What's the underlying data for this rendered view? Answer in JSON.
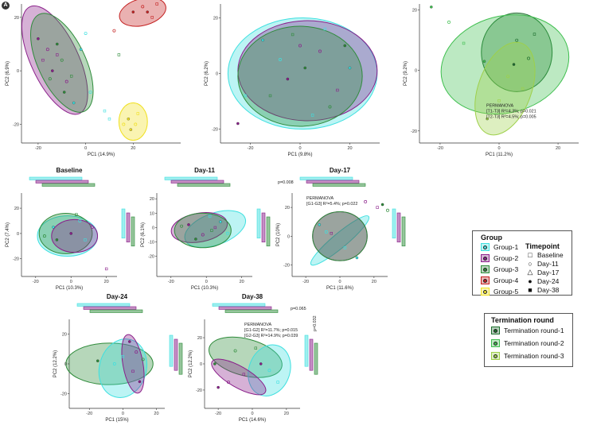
{
  "figure_label": "A",
  "colors": {
    "Group-1": "#3ee0e0",
    "Group-2": "#8a1f8a",
    "Group-3": "#2e8b3a",
    "Group-4": "#c42020",
    "Group-5": "#f0e020",
    "Termination round-1": "#1f6f2f",
    "Termination round-2": "#3fbf4f",
    "Termination round-3": "#9ed04a"
  },
  "legend": {
    "group_title": "Group",
    "groups": [
      "Group-1",
      "Group-2",
      "Group-3",
      "Group-4",
      "Group-5"
    ],
    "timepoint_title": "Timepoint",
    "timepoints": [
      {
        "label": "Baseline",
        "symbol": "□"
      },
      {
        "label": "Day-11",
        "symbol": "○"
      },
      {
        "label": "Day-17",
        "symbol": "△"
      },
      {
        "label": "Day-24",
        "symbol": "●"
      },
      {
        "label": "Day-38",
        "symbol": "■"
      }
    ],
    "termination_title": "Termination round",
    "termination_rounds": [
      "Termination round-1",
      "Termination round-2",
      "Termination round-3"
    ]
  },
  "chart_data": [
    {
      "id": "all-groups",
      "type": "scatter",
      "title": "",
      "xlabel": "PC1 (14.9%)",
      "ylabel": "PC2 (6.9%)",
      "xlim": [
        -27,
        40
      ],
      "ylim": [
        -27,
        25
      ],
      "xticks": [
        -20,
        0,
        20
      ],
      "yticks": [
        -20,
        0,
        20
      ],
      "grid": false,
      "ellipses": [
        {
          "group": "Group-2",
          "cx": -13,
          "cy": 4,
          "rx": 10,
          "ry": 22,
          "angle": -25
        },
        {
          "group": "Group-3",
          "cx": -10,
          "cy": 3,
          "rx": 10,
          "ry": 20,
          "angle": -25
        },
        {
          "group": "Group-4",
          "cx": 24,
          "cy": 22,
          "rx": 10,
          "ry": 5,
          "angle": -15
        },
        {
          "group": "Group-5",
          "cx": 20,
          "cy": -19,
          "rx": 6,
          "ry": 7,
          "angle": 0
        }
      ],
      "points": [
        {
          "group": "Group-2",
          "x": -20,
          "y": 12
        },
        {
          "group": "Group-2",
          "x": -16,
          "y": 8
        },
        {
          "group": "Group-2",
          "x": -12,
          "y": 6
        },
        {
          "group": "Group-2",
          "x": -14,
          "y": 0
        },
        {
          "group": "Group-2",
          "x": -8,
          "y": -4
        },
        {
          "group": "Group-2",
          "x": -18,
          "y": 4
        },
        {
          "group": "Group-3",
          "x": -12,
          "y": 10
        },
        {
          "group": "Group-3",
          "x": -10,
          "y": 4
        },
        {
          "group": "Group-3",
          "x": -6,
          "y": -2
        },
        {
          "group": "Group-3",
          "x": -9,
          "y": -8
        },
        {
          "group": "Group-3",
          "x": -15,
          "y": -3
        },
        {
          "group": "Group-3",
          "x": 14,
          "y": 6
        },
        {
          "group": "Group-1",
          "x": -5,
          "y": -12
        },
        {
          "group": "Group-1",
          "x": 2,
          "y": -8
        },
        {
          "group": "Group-1",
          "x": 8,
          "y": -15
        },
        {
          "group": "Group-1",
          "x": -2,
          "y": 8
        },
        {
          "group": "Group-1",
          "x": 0,
          "y": 14
        },
        {
          "group": "Group-1",
          "x": 10,
          "y": -18
        },
        {
          "group": "Group-4",
          "x": 20,
          "y": 22
        },
        {
          "group": "Group-4",
          "x": 24,
          "y": 24
        },
        {
          "group": "Group-4",
          "x": 28,
          "y": 20
        },
        {
          "group": "Group-4",
          "x": 26,
          "y": 22
        },
        {
          "group": "Group-4",
          "x": 12,
          "y": 15
        },
        {
          "group": "Group-4",
          "x": 30,
          "y": 25
        },
        {
          "group": "Group-5",
          "x": 18,
          "y": -18
        },
        {
          "group": "Group-5",
          "x": 21,
          "y": -20
        },
        {
          "group": "Group-5",
          "x": 22,
          "y": -16
        },
        {
          "group": "Group-5",
          "x": 19,
          "y": -22
        },
        {
          "group": "Group-5",
          "x": 16,
          "y": -20
        }
      ]
    },
    {
      "id": "all-timepoints",
      "type": "scatter",
      "title": "",
      "xlabel": "PC1 (9.8%)",
      "ylabel": "PC2 (6.2%)",
      "xlim": [
        -32,
        32
      ],
      "ylim": [
        -25,
        25
      ],
      "xticks": [
        -20,
        0,
        20
      ],
      "yticks": [
        -20,
        0,
        20
      ],
      "grid": false,
      "ellipses": [
        {
          "group": "Group-1",
          "cx": 1,
          "cy": 0,
          "rx": 30,
          "ry": 20,
          "angle": 0
        },
        {
          "group": "Group-2",
          "cx": 3,
          "cy": 1,
          "rx": 28,
          "ry": 18,
          "angle": 0
        },
        {
          "group": "Group-3",
          "cx": 0,
          "cy": -1,
          "rx": 25,
          "ry": 18,
          "angle": 0
        }
      ],
      "points": [
        {
          "group": "Group-1",
          "x": -15,
          "y": 12
        },
        {
          "group": "Group-1",
          "x": -8,
          "y": 5
        },
        {
          "group": "Group-1",
          "x": 10,
          "y": 16
        },
        {
          "group": "Group-1",
          "x": 20,
          "y": 2
        },
        {
          "group": "Group-1",
          "x": -22,
          "y": -8
        },
        {
          "group": "Group-1",
          "x": 5,
          "y": -15
        },
        {
          "group": "Group-2",
          "x": -5,
          "y": -2
        },
        {
          "group": "Group-2",
          "x": 8,
          "y": 8
        },
        {
          "group": "Group-2",
          "x": 15,
          "y": -6
        },
        {
          "group": "Group-2",
          "x": -25,
          "y": -18
        },
        {
          "group": "Group-2",
          "x": 0,
          "y": 10
        },
        {
          "group": "Group-3",
          "x": -12,
          "y": -8
        },
        {
          "group": "Group-3",
          "x": 2,
          "y": 2
        },
        {
          "group": "Group-3",
          "x": 12,
          "y": -12
        },
        {
          "group": "Group-3",
          "x": -3,
          "y": 14
        },
        {
          "group": "Group-3",
          "x": 18,
          "y": 10
        }
      ]
    },
    {
      "id": "termination",
      "type": "scatter",
      "title": "",
      "xlabel": "PC1 (11.2%)",
      "ylabel": "PC2 (9.2%)",
      "xlim": [
        -27,
        27
      ],
      "ylim": [
        -24,
        22
      ],
      "xticks": [
        -20,
        0,
        20
      ],
      "yticks": [
        -20,
        0,
        20
      ],
      "grid": false,
      "ellipses": [
        {
          "group": "Termination round-1",
          "cx": 6,
          "cy": 6,
          "rx": 12,
          "ry": 13,
          "angle": 0
        },
        {
          "group": "Termination round-2",
          "cx": 2,
          "cy": 2,
          "rx": 22,
          "ry": 16,
          "angle": -15
        },
        {
          "group": "Termination round-3",
          "cx": 2,
          "cy": -6,
          "rx": 9,
          "ry": 16,
          "angle": 20
        }
      ],
      "points": [
        {
          "group": "Termination round-2",
          "x": -23,
          "y": 21
        },
        {
          "group": "Termination round-2",
          "x": -17,
          "y": 16
        },
        {
          "group": "Termination round-2",
          "x": -12,
          "y": 9
        },
        {
          "group": "Termination round-2",
          "x": -5,
          "y": 3
        },
        {
          "group": "Termination round-1",
          "x": 6,
          "y": 10
        },
        {
          "group": "Termination round-1",
          "x": 12,
          "y": 12
        },
        {
          "group": "Termination round-1",
          "x": 5,
          "y": 2
        },
        {
          "group": "Termination round-1",
          "x": 10,
          "y": 4
        },
        {
          "group": "Termination round-3",
          "x": 0,
          "y": -10
        },
        {
          "group": "Termination round-3",
          "x": -4,
          "y": -16
        },
        {
          "group": "Termination round-3",
          "x": 3,
          "y": -2
        },
        {
          "group": "Termination round-3",
          "x": 8,
          "y": -6
        }
      ],
      "annotation": [
        "PERMANOVA",
        "[T1-T3] R²=4.3%; p=0.021",
        "[T2-T3] R²=4.5%; p=0.005"
      ]
    },
    {
      "id": "baseline",
      "type": "scatter",
      "title": "Baseline",
      "xlabel": "PC1 (10.3%)",
      "ylabel": "PC2 (7.4%)",
      "xlim": [
        -28,
        26
      ],
      "ylim": [
        -34,
        32
      ],
      "xticks": [
        -20,
        0,
        20
      ],
      "yticks": [
        -20,
        0,
        20
      ],
      "grid": false,
      "ellipses": [
        {
          "group": "Group-1",
          "cx": -2,
          "cy": -2,
          "rx": 17,
          "ry": 16,
          "angle": 0
        },
        {
          "group": "Group-3",
          "cx": -3,
          "cy": 0,
          "rx": 15,
          "ry": 16,
          "angle": 0
        },
        {
          "group": "Group-2",
          "cx": 2,
          "cy": -2,
          "rx": 13,
          "ry": 13,
          "angle": 0
        }
      ],
      "points": [
        {
          "group": "Group-1",
          "x": -10,
          "y": 5
        },
        {
          "group": "Group-1",
          "x": 5,
          "y": 10
        },
        {
          "group": "Group-1",
          "x": 8,
          "y": -5
        },
        {
          "group": "Group-2",
          "x": 0,
          "y": 0
        },
        {
          "group": "Group-2",
          "x": 12,
          "y": 5
        },
        {
          "group": "Group-2",
          "x": 20,
          "y": -28
        },
        {
          "group": "Group-3",
          "x": -8,
          "y": -5
        },
        {
          "group": "Group-3",
          "x": -15,
          "y": -2
        },
        {
          "group": "Group-3",
          "x": 3,
          "y": 15
        }
      ]
    },
    {
      "id": "day11",
      "type": "scatter",
      "title": "Day-11",
      "xlabel": "PC1 (10.3%)",
      "ylabel": "PC2 (6.1%)",
      "xlim": [
        -28,
        26
      ],
      "ylim": [
        -34,
        24
      ],
      "xticks": [
        -20,
        0,
        20
      ],
      "yticks": [
        -20,
        -10,
        0,
        10,
        20
      ],
      "grid": false,
      "ellipses": [
        {
          "group": "Group-1",
          "cx": 5,
          "cy": -1,
          "rx": 18,
          "ry": 11,
          "angle": -20
        },
        {
          "group": "Group-2",
          "cx": -4,
          "cy": 0,
          "rx": 16,
          "ry": 10,
          "angle": -10
        },
        {
          "group": "Group-3",
          "cx": -2,
          "cy": -2,
          "rx": 16,
          "ry": 12,
          "angle": 0
        }
      ],
      "points": [
        {
          "group": "Group-1",
          "x": 8,
          "y": 4
        },
        {
          "group": "Group-1",
          "x": 12,
          "y": -4
        },
        {
          "group": "Group-1",
          "x": 2,
          "y": 8
        },
        {
          "group": "Group-2",
          "x": -10,
          "y": 2
        },
        {
          "group": "Group-2",
          "x": -2,
          "y": -5
        },
        {
          "group": "Group-2",
          "x": 5,
          "y": 0
        },
        {
          "group": "Group-3",
          "x": -6,
          "y": -8
        },
        {
          "group": "Group-3",
          "x": -14,
          "y": 1
        },
        {
          "group": "Group-3",
          "x": 3,
          "y": -2
        }
      ]
    },
    {
      "id": "day17",
      "type": "scatter",
      "title": "Day-17",
      "xlabel": "PC1 (11.6%)",
      "ylabel": "PC2 (10%)",
      "xlim": [
        -28,
        28
      ],
      "ylim": [
        -28,
        30
      ],
      "xticks": [
        -20,
        0,
        20
      ],
      "yticks": [
        -20,
        0,
        20
      ],
      "grid": false,
      "ellipses": [
        {
          "group": "Group-1",
          "cx": 0,
          "cy": -3,
          "rx": 22,
          "ry": 5,
          "angle": -40
        },
        {
          "group": "Group-2",
          "cx": 0,
          "cy": 0,
          "rx": 16,
          "ry": 17,
          "angle": 0
        },
        {
          "group": "Group-3",
          "cx": 0,
          "cy": 0,
          "rx": 16,
          "ry": 17,
          "angle": 0
        }
      ],
      "points": [
        {
          "group": "Group-1",
          "x": -12,
          "y": 8
        },
        {
          "group": "Group-1",
          "x": -8,
          "y": 3
        },
        {
          "group": "Group-1",
          "x": 3,
          "y": -8
        },
        {
          "group": "Group-1",
          "x": 10,
          "y": -15
        },
        {
          "group": "Group-2",
          "x": 15,
          "y": 24
        },
        {
          "group": "Group-2",
          "x": 22,
          "y": 20
        },
        {
          "group": "Group-3",
          "x": 25,
          "y": 22
        },
        {
          "group": "Group-3",
          "x": 28,
          "y": 18
        },
        {
          "group": "Group-2",
          "x": -5,
          "y": 2
        }
      ],
      "annotation": [
        "PERMANOVA",
        "[G1-G3] R²=5.4%; p=0.022"
      ],
      "pvalue_bracket": "p=0.008"
    },
    {
      "id": "day24",
      "type": "scatter",
      "title": "Day-24",
      "xlabel": "PC1 (15%)",
      "ylabel": "PC2 (12.2%)",
      "xlim": [
        -32,
        25
      ],
      "ylim": [
        -30,
        30
      ],
      "xticks": [
        -20,
        0,
        20
      ],
      "yticks": [
        -20,
        0,
        20
      ],
      "grid": false,
      "ellipses": [
        {
          "group": "Group-3",
          "cx": -8,
          "cy": 0,
          "rx": 26,
          "ry": 14,
          "angle": 0
        },
        {
          "group": "Group-1",
          "cx": 0,
          "cy": -3,
          "rx": 14,
          "ry": 20,
          "angle": 15
        },
        {
          "group": "Group-2",
          "cx": 6,
          "cy": 0,
          "rx": 6,
          "ry": 20,
          "angle": -10
        }
      ],
      "points": [
        {
          "group": "Group-3",
          "x": -15,
          "y": 2
        },
        {
          "group": "Group-1",
          "x": -5,
          "y": 0
        },
        {
          "group": "Group-1",
          "x": 0,
          "y": 5
        },
        {
          "group": "Group-2",
          "x": 4,
          "y": 15
        },
        {
          "group": "Group-2",
          "x": 8,
          "y": 8
        },
        {
          "group": "Group-2",
          "x": 6,
          "y": -5
        },
        {
          "group": "Group-2",
          "x": 10,
          "y": -12
        },
        {
          "group": "Group-3",
          "x": 12,
          "y": 3
        }
      ]
    },
    {
      "id": "day38",
      "type": "scatter",
      "title": "Day-38",
      "xlabel": "PC1 (14.6%)",
      "ylabel": "PC2 (12.2%)",
      "xlim": [
        -28,
        28
      ],
      "ylim": [
        -34,
        34
      ],
      "xticks": [
        -20,
        0,
        20
      ],
      "yticks": [
        -20,
        0,
        20
      ],
      "grid": false,
      "ellipses": [
        {
          "group": "Group-3",
          "cx": -4,
          "cy": 5,
          "rx": 22,
          "ry": 14,
          "angle": 15
        },
        {
          "group": "Group-1",
          "cx": 10,
          "cy": -5,
          "rx": 12,
          "ry": 20,
          "angle": 20
        },
        {
          "group": "Group-2",
          "cx": -8,
          "cy": -10,
          "rx": 18,
          "ry": 8,
          "angle": 30
        }
      ],
      "points": [
        {
          "group": "Group-2",
          "x": -20,
          "y": -18
        },
        {
          "group": "Group-2",
          "x": -14,
          "y": -14
        },
        {
          "group": "Group-2",
          "x": -5,
          "y": -8
        },
        {
          "group": "Group-2",
          "x": 5,
          "y": 0
        },
        {
          "group": "Group-3",
          "x": -10,
          "y": 10
        },
        {
          "group": "Group-3",
          "x": 2,
          "y": 12
        },
        {
          "group": "Group-3",
          "x": -22,
          "y": 0
        },
        {
          "group": "Group-1",
          "x": 10,
          "y": -5
        },
        {
          "group": "Group-1",
          "x": 15,
          "y": -14
        }
      ],
      "annotation": [
        "PERMANOVA",
        "[G1-G2] R²=11.7%; p=0.015",
        "[G2-G3] R²=14.9%; p=0.039"
      ],
      "pvalue_top": "p=0.065",
      "pvalue_right": "p=0.032"
    }
  ]
}
